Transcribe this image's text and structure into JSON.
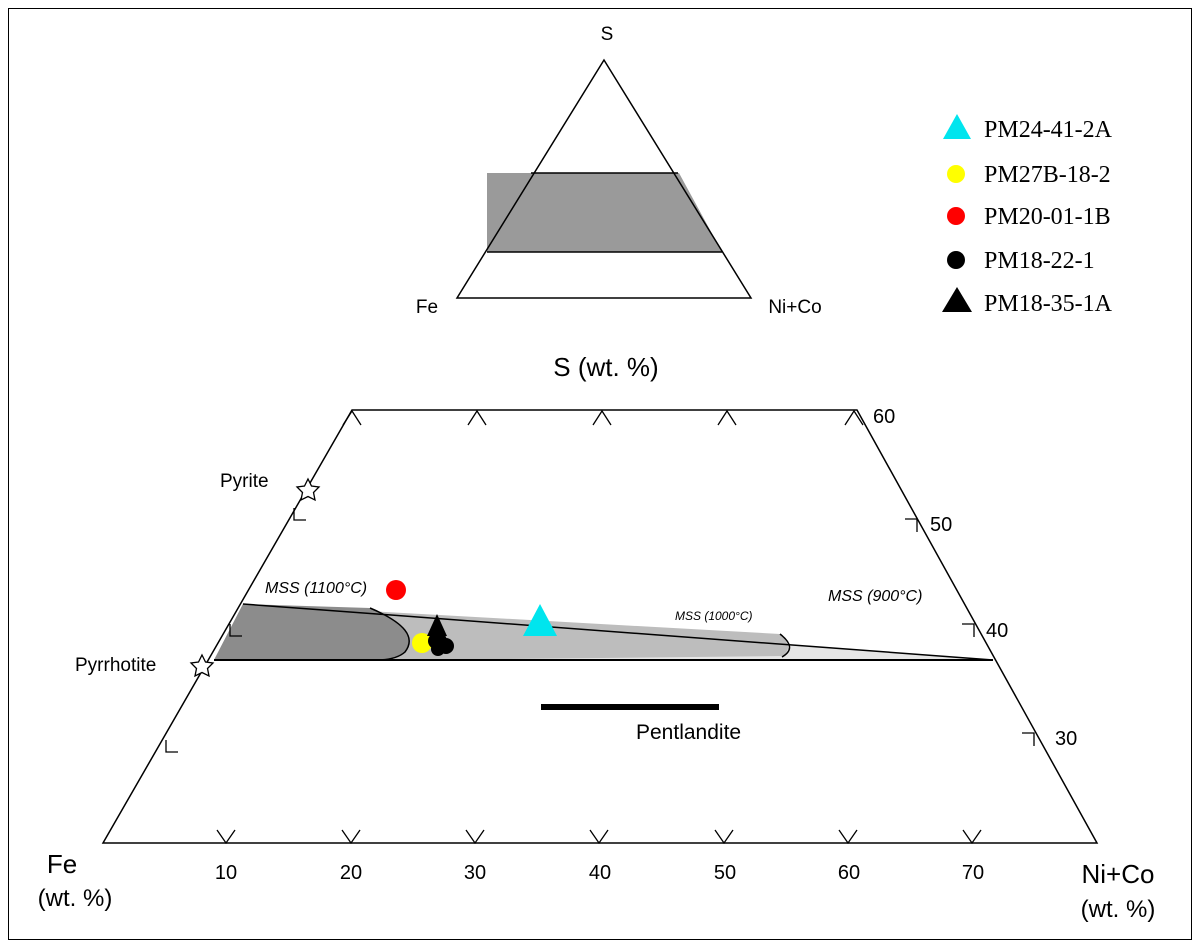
{
  "inset": {
    "apex_label": "S",
    "left_label": "Fe",
    "right_label": "Ni+Co"
  },
  "main": {
    "top_label": "S (wt. %)",
    "fe_label_line1": "Fe",
    "fe_label_line2": "(wt. %)",
    "nico_label_line1": "Ni+Co",
    "nico_label_line2": "(wt. %)",
    "bottom_ticks": [
      "10",
      "20",
      "30",
      "40",
      "50",
      "60",
      "70"
    ],
    "right_ticks": [
      "60",
      "50",
      "40",
      "30"
    ],
    "minerals": {
      "pyrite": "Pyrite",
      "pyrrhotite": "Pyrrhotite",
      "pentlandite": "Pentlandite"
    },
    "fields": {
      "mss1100": "MSS (1100°C)",
      "mss1000": "MSS (1000°C)",
      "mss900": "MSS (900°C)"
    }
  },
  "legend": [
    {
      "label": "PM24-41-2A",
      "marker": "triangle",
      "color": "#00e5ee"
    },
    {
      "label": "PM27B-18-2",
      "marker": "circle",
      "color": "#ffff00"
    },
    {
      "label": "PM20-01-1B",
      "marker": "circle",
      "color": "#ff0000"
    },
    {
      "label": "PM18-22-1",
      "marker": "circle",
      "color": "#000000"
    },
    {
      "label": "PM18-35-1A",
      "marker": "triangle",
      "color": "#000000"
    }
  ],
  "colors": {
    "mss1100": "#8c8c8c",
    "mss1000": "#bdbdbd",
    "mss900": "#e6e6e6",
    "inset_band": "#9a9a9a"
  }
}
